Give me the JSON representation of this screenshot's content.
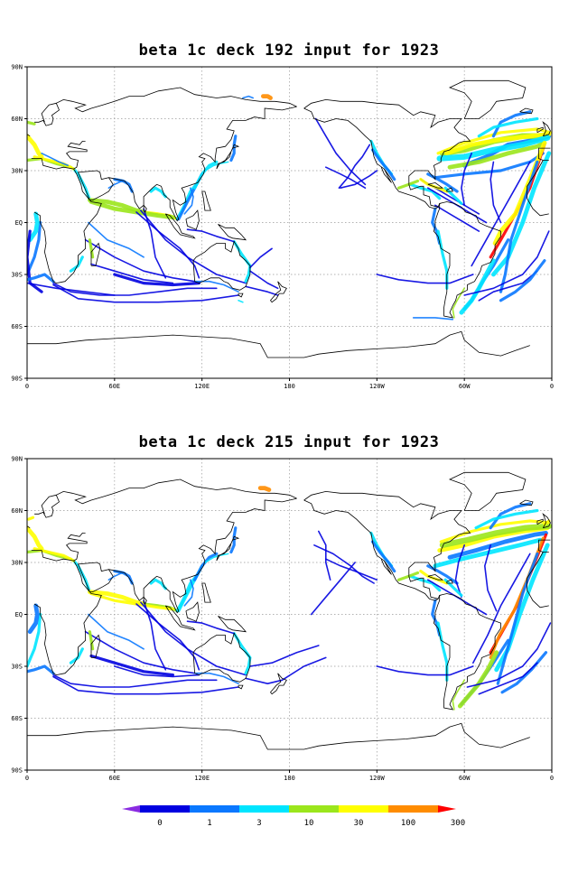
{
  "panels": [
    {
      "title": "beta 1c deck 192 input for 1923",
      "y_ticks": [
        "90N",
        "60N",
        "30N",
        "EQ",
        "30S",
        "60S",
        "90S"
      ],
      "x_ticks": [
        "0",
        "60E",
        "120E",
        "180",
        "120W",
        "60W",
        "0"
      ]
    },
    {
      "title": "beta 1c deck 215 input for 1923",
      "y_ticks": [
        "90N",
        "60N",
        "30N",
        "EQ",
        "30S",
        "60S",
        "90S"
      ],
      "x_ticks": [
        "0",
        "60E",
        "120E",
        "180",
        "120W",
        "60W",
        "0"
      ]
    }
  ],
  "colorbar": {
    "labels": [
      "0",
      "1",
      "3",
      "10",
      "30",
      "100",
      "300"
    ],
    "colors": [
      "#8a2be2",
      "#0000e0",
      "#0a78ff",
      "#00e5ff",
      "#9be61c",
      "#ffff00",
      "#ff8c00",
      "#ff0000"
    ]
  }
}
